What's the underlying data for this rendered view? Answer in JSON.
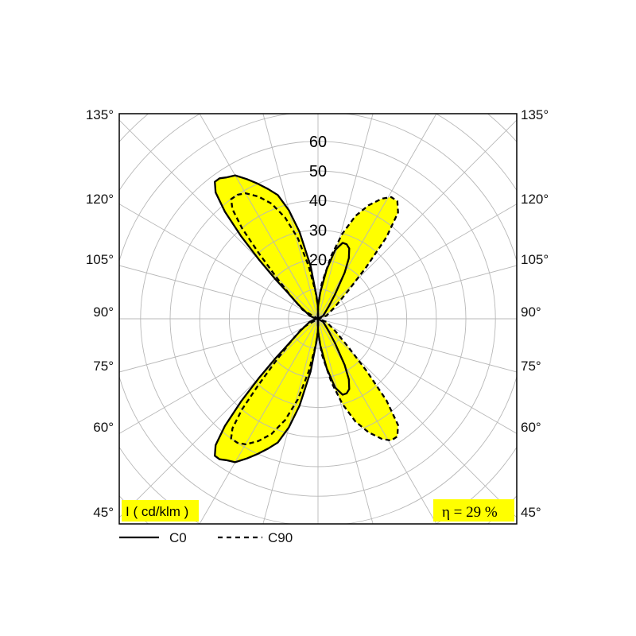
{
  "chart_data": {
    "type": "polar",
    "unit_label": "I ( cd/klm )",
    "efficiency_label": "η = 29 %",
    "radial_ticks": [
      20,
      30,
      40,
      50,
      60
    ],
    "radial_max": 70,
    "angle_tick_labels": [
      "135°",
      "120°",
      "105°",
      "90°",
      "75°",
      "60°",
      "45°"
    ],
    "grid": true,
    "legend_position": "bottom-left",
    "fill_color": "#ffff00",
    "series": [
      {
        "name": "C0",
        "style": "solid",
        "points": [
          [
            0,
            4
          ],
          [
            4,
            8
          ],
          [
            8,
            18
          ],
          [
            12,
            30
          ],
          [
            15,
            38
          ],
          [
            18,
            44
          ],
          [
            21,
            47
          ],
          [
            24,
            50
          ],
          [
            27,
            53
          ],
          [
            30,
            56
          ],
          [
            33,
            57
          ],
          [
            35,
            58
          ],
          [
            37,
            58
          ],
          [
            39,
            55
          ],
          [
            41,
            48
          ],
          [
            43,
            38
          ],
          [
            45,
            28
          ],
          [
            47,
            20
          ],
          [
            49,
            14
          ],
          [
            52,
            10
          ],
          [
            56,
            7
          ],
          [
            60,
            5
          ],
          [
            70,
            3
          ],
          [
            80,
            1
          ],
          [
            90,
            0
          ],
          [
            100,
            1
          ],
          [
            110,
            3
          ],
          [
            120,
            5
          ],
          [
            124,
            7
          ],
          [
            128,
            10
          ],
          [
            131,
            14
          ],
          [
            133,
            20
          ],
          [
            135,
            28
          ],
          [
            137,
            38
          ],
          [
            139,
            48
          ],
          [
            141,
            55
          ],
          [
            143,
            58
          ],
          [
            145,
            58
          ],
          [
            147,
            57
          ],
          [
            150,
            56
          ],
          [
            153,
            53
          ],
          [
            156,
            50
          ],
          [
            159,
            47
          ],
          [
            162,
            44
          ],
          [
            165,
            38
          ],
          [
            168,
            30
          ],
          [
            172,
            18
          ],
          [
            176,
            8
          ],
          [
            180,
            4
          ]
        ],
        "points_mirror": [
          [
            0,
            4
          ],
          [
            5,
            9
          ],
          [
            10,
            17
          ],
          [
            14,
            24
          ],
          [
            18,
            27
          ],
          [
            21,
            27
          ],
          [
            24,
            26
          ],
          [
            27,
            23
          ],
          [
            30,
            18
          ],
          [
            35,
            10
          ],
          [
            40,
            6
          ],
          [
            45,
            4
          ],
          [
            60,
            2
          ],
          [
            90,
            0
          ],
          [
            120,
            2
          ],
          [
            135,
            4
          ],
          [
            140,
            6
          ],
          [
            145,
            10
          ],
          [
            150,
            18
          ],
          [
            153,
            23
          ],
          [
            156,
            26
          ],
          [
            159,
            27
          ],
          [
            162,
            27
          ],
          [
            166,
            24
          ],
          [
            170,
            17
          ],
          [
            175,
            9
          ],
          [
            180,
            4
          ]
        ]
      },
      {
        "name": "C90",
        "style": "dashed",
        "points": [
          [
            0,
            4
          ],
          [
            5,
            9
          ],
          [
            10,
            18
          ],
          [
            14,
            28
          ],
          [
            18,
            36
          ],
          [
            22,
            42
          ],
          [
            26,
            46
          ],
          [
            30,
            49
          ],
          [
            33,
            50
          ],
          [
            36,
            50
          ],
          [
            38,
            47
          ],
          [
            40,
            40
          ],
          [
            42,
            30
          ],
          [
            45,
            20
          ],
          [
            50,
            12
          ],
          [
            60,
            6
          ],
          [
            90,
            0
          ],
          [
            120,
            6
          ],
          [
            130,
            12
          ],
          [
            135,
            20
          ],
          [
            138,
            30
          ],
          [
            140,
            40
          ],
          [
            142,
            47
          ],
          [
            144,
            50
          ],
          [
            147,
            50
          ],
          [
            150,
            49
          ],
          [
            154,
            46
          ],
          [
            158,
            42
          ],
          [
            162,
            36
          ],
          [
            166,
            28
          ],
          [
            170,
            18
          ],
          [
            175,
            9
          ],
          [
            180,
            4
          ]
        ],
        "points_mirror": [
          [
            0,
            4
          ],
          [
            6,
            12
          ],
          [
            12,
            22
          ],
          [
            16,
            30
          ],
          [
            20,
            37
          ],
          [
            24,
            42
          ],
          [
            28,
            46
          ],
          [
            31,
            48
          ],
          [
            34,
            48
          ],
          [
            37,
            45
          ],
          [
            40,
            36
          ],
          [
            43,
            24
          ],
          [
            47,
            14
          ],
          [
            55,
            7
          ],
          [
            70,
            3
          ],
          [
            90,
            0
          ],
          [
            110,
            3
          ],
          [
            125,
            7
          ],
          [
            133,
            14
          ],
          [
            137,
            24
          ],
          [
            140,
            36
          ],
          [
            143,
            45
          ],
          [
            146,
            48
          ],
          [
            149,
            48
          ],
          [
            152,
            46
          ],
          [
            156,
            42
          ],
          [
            160,
            37
          ],
          [
            164,
            30
          ],
          [
            168,
            22
          ],
          [
            174,
            12
          ],
          [
            180,
            4
          ]
        ]
      }
    ]
  }
}
